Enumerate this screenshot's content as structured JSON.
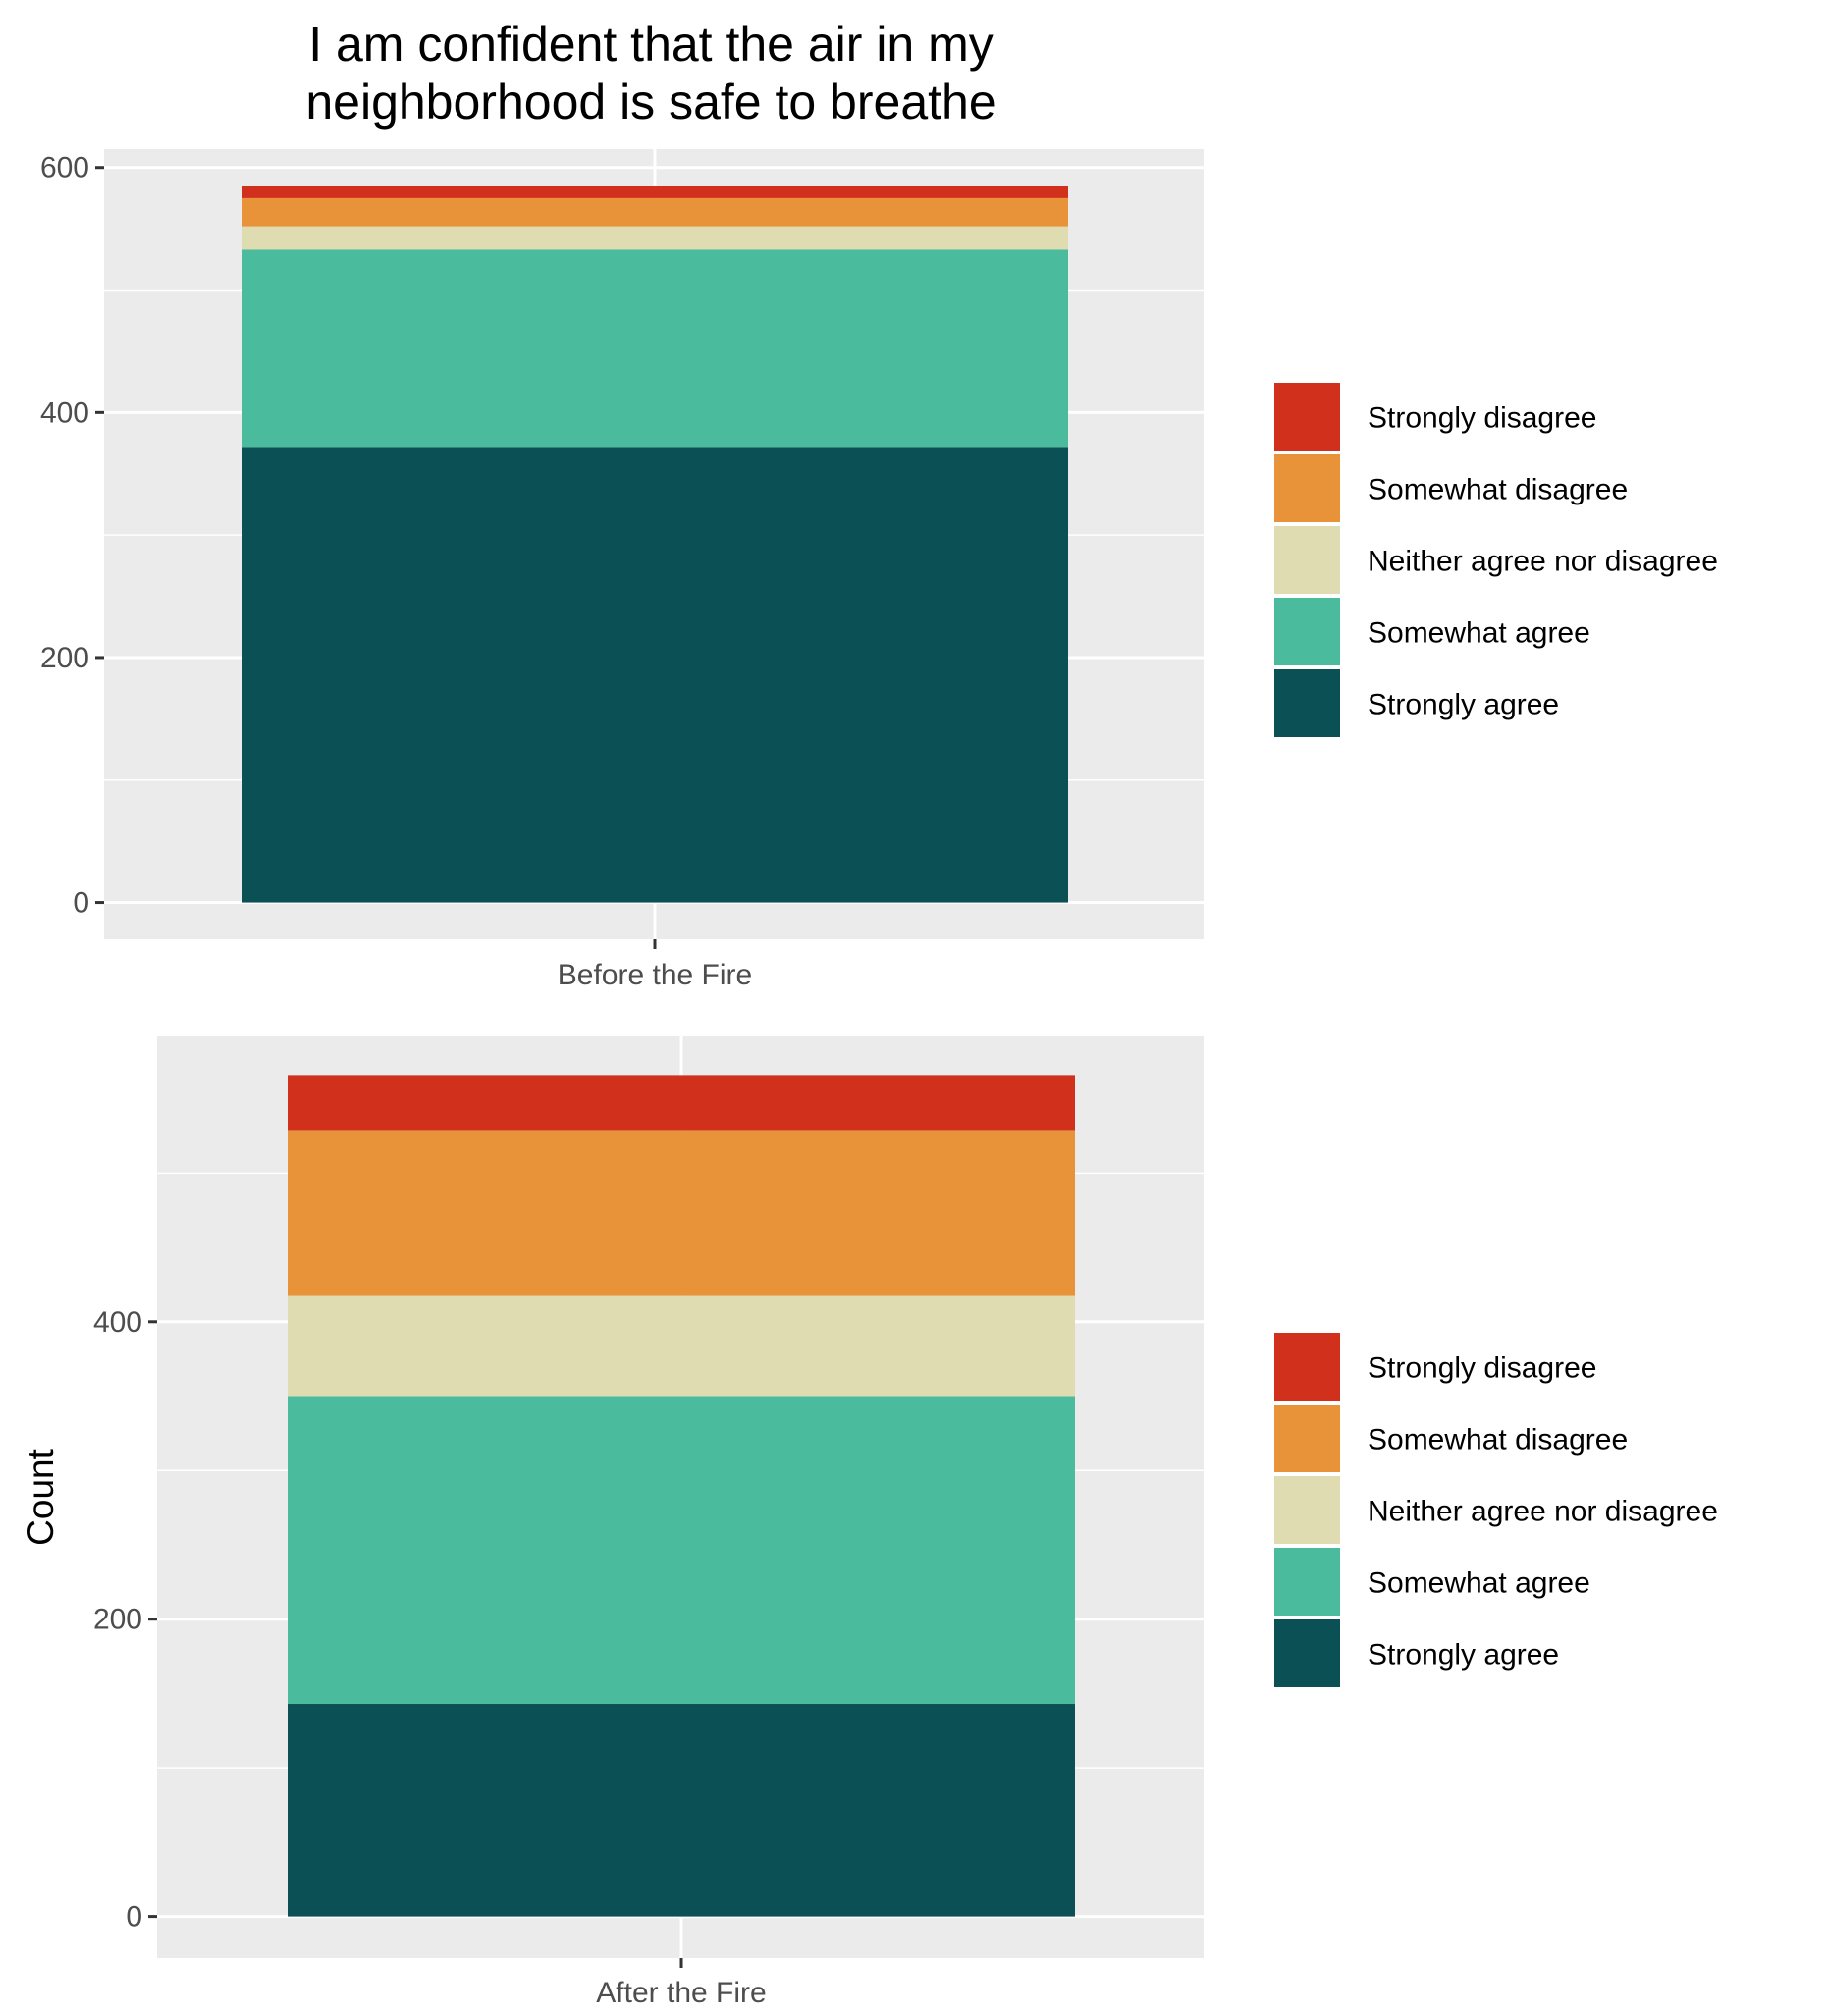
{
  "title_lines": [
    "I am confident that the air in my",
    "neighborhood is safe to breathe"
  ],
  "legend": [
    {
      "label": "Strongly disagree",
      "color": "#D1301D"
    },
    {
      "label": "Somewhat disagree",
      "color": "#E8923A"
    },
    {
      "label": "Neither agree nor disagree",
      "color": "#DFDCB2"
    },
    {
      "label": "Somewhat agree",
      "color": "#4BBB9D"
    },
    {
      "label": "Strongly agree",
      "color": "#0B5055"
    }
  ],
  "chart_data": [
    {
      "type": "bar",
      "stacked": true,
      "title": "I am confident that the air in my neighborhood is safe to breathe",
      "categories": [
        "Before the Fire"
      ],
      "xlabel": "",
      "ylabel": "",
      "ylim": [
        -30,
        615
      ],
      "yticks": [
        0,
        200,
        400,
        600
      ],
      "grid": true,
      "legend_position": "right",
      "series": [
        {
          "name": "Strongly agree",
          "values": [
            372
          ]
        },
        {
          "name": "Somewhat agree",
          "values": [
            161
          ]
        },
        {
          "name": "Neither agree nor disagree",
          "values": [
            19
          ]
        },
        {
          "name": "Somewhat disagree",
          "values": [
            23
          ]
        },
        {
          "name": "Strongly disagree",
          "values": [
            10
          ]
        }
      ]
    },
    {
      "type": "bar",
      "stacked": true,
      "categories": [
        "After the Fire"
      ],
      "xlabel": "",
      "ylabel": "Count",
      "ylim": [
        -28,
        592
      ],
      "yticks": [
        0,
        200,
        400
      ],
      "grid": true,
      "legend_position": "right",
      "series": [
        {
          "name": "Strongly agree",
          "values": [
            143
          ]
        },
        {
          "name": "Somewhat agree",
          "values": [
            207
          ]
        },
        {
          "name": "Neither agree nor disagree",
          "values": [
            68
          ]
        },
        {
          "name": "Somewhat disagree",
          "values": [
            111
          ]
        },
        {
          "name": "Strongly disagree",
          "values": [
            37
          ]
        }
      ]
    }
  ]
}
